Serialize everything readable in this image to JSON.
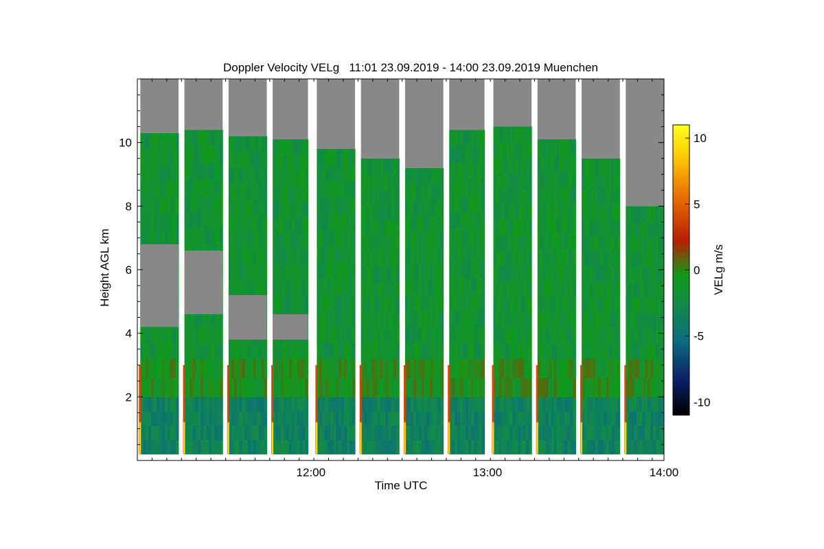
{
  "chart_data": {
    "type": "heatmap",
    "title": "Doppler Velocity VELg   11:01 23.09.2019 - 14:00 23.09.2019 Muenchen",
    "xlabel": "Time UTC",
    "ylabel": "Height AGL km",
    "x_range": [
      "11:01",
      "14:00"
    ],
    "x_ticks": [
      "12:00",
      "13:00",
      "14:00"
    ],
    "y_range_km": [
      0,
      12
    ],
    "y_ticks": [
      2,
      4,
      6,
      8,
      10
    ],
    "colorbar": {
      "label": "VELg m/s",
      "range": [
        -11,
        11
      ],
      "ticks": [
        10,
        5,
        0,
        -5,
        -10
      ],
      "colors": [
        "#000000",
        "#0a1f66",
        "#0a6a80",
        "#138a4a",
        "#119a1a",
        "#556a10",
        "#b81e00",
        "#e86c00",
        "#ffd000",
        "#ffff20"
      ]
    },
    "scan_segments_utc": [
      [
        "11:02",
        "11:15"
      ],
      [
        "11:17",
        "11:30"
      ],
      [
        "11:32",
        "11:45"
      ],
      [
        "11:47",
        "11:59"
      ],
      [
        "12:02",
        "12:15"
      ],
      [
        "12:17",
        "12:30"
      ],
      [
        "12:32",
        "12:45"
      ],
      [
        "12:47",
        "12:59"
      ],
      [
        "13:02",
        "13:15"
      ],
      [
        "13:17",
        "13:30"
      ],
      [
        "13:32",
        "13:45"
      ],
      [
        "13:47",
        "14:00"
      ]
    ],
    "cloud_top_km": [
      10.3,
      10.4,
      10.2,
      10.1,
      9.8,
      9.5,
      9.2,
      10.4,
      10.5,
      10.1,
      9.5,
      8.0
    ],
    "gap_layers_km": [
      [
        4.2,
        6.8
      ],
      [
        4.6,
        6.6
      ],
      [
        3.8,
        5.2
      ],
      [
        3.8,
        4.6
      ]
    ],
    "layers": [
      {
        "name": "lower_band",
        "bottom_km": 0.2,
        "top_km": 2.0,
        "mean_velocity_ms": -3.5
      },
      {
        "name": "mid_band",
        "bottom_km": 2.0,
        "top_km": 3.2,
        "mean_velocity_ms": -0.5
      },
      {
        "name": "cloud_body",
        "bottom_km": 3.2,
        "top_km": 10.0,
        "mean_velocity_ms": -1.5
      }
    ],
    "no_signal_color": "#888888"
  }
}
